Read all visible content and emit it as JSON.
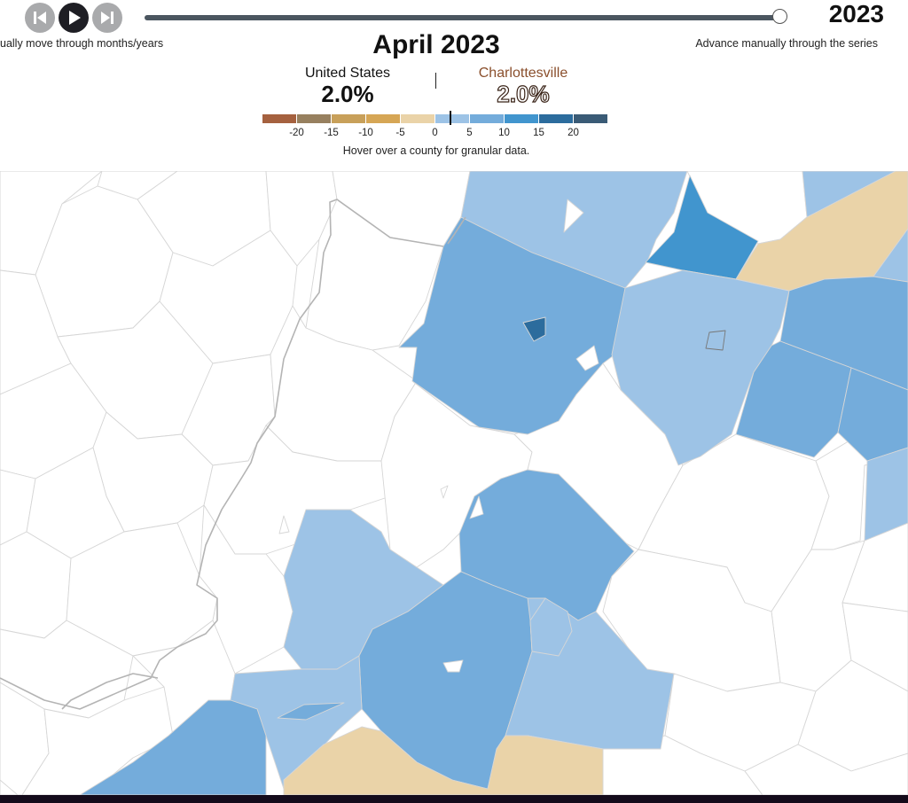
{
  "controls": {
    "prev_icon": "step-back-icon",
    "play_icon": "play-icon",
    "next_icon": "step-forward-icon",
    "hint_left": "ually move through months/years",
    "hint_right": "Advance manually through the series"
  },
  "slider": {
    "position_fraction": 1.0
  },
  "year": "2023",
  "title": "April 2023",
  "us": {
    "label": "United States",
    "value": "2.0%"
  },
  "city": {
    "label": "Charlottesville",
    "value": "2.0%"
  },
  "legend": {
    "colors": [
      "#a5613f",
      "#97805f",
      "#c8a05a",
      "#d6a655",
      "#ead3a8",
      "#9dc3e6",
      "#74acdb",
      "#4195ce",
      "#2c6c9d",
      "#3a5b76"
    ],
    "ticks": [
      "-20",
      "-15",
      "-10",
      "-5",
      "0",
      "5",
      "10",
      "15",
      "20"
    ],
    "marker_value": 2.0,
    "note": "Hover over a county for granular data."
  },
  "map_colors": {
    "light_blue": "#9dc3e6",
    "mid_blue": "#74acdb",
    "strong_blue": "#4195ce",
    "dark_blue": "#2c6c9d",
    "tan": "#ead3a8",
    "none": "#ffffff",
    "border": "#d6d6d6",
    "state_border": "#b4b4b4"
  }
}
